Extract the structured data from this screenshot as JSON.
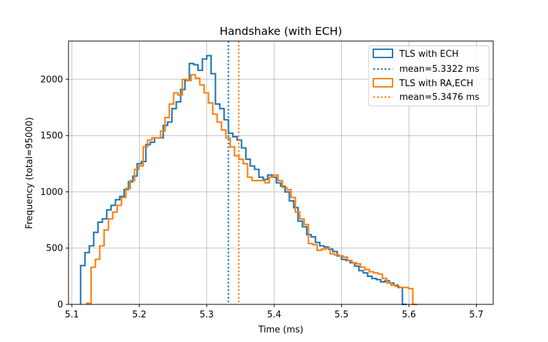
{
  "chart_data": {
    "type": "histogram",
    "title": "Handshake (with ECH)",
    "xlabel": "Time (ms)",
    "ylabel": "Frequency (total=95000)",
    "xlim": [
      5.095,
      5.725
    ],
    "ylim": [
      0,
      2340
    ],
    "xticks": [
      5.1,
      5.2,
      5.3,
      5.4,
      5.5,
      5.6,
      5.7
    ],
    "yticks": [
      0,
      500,
      1000,
      1500,
      2000
    ],
    "grid": true,
    "legend_position": "top-right",
    "series": [
      {
        "name": "TLS with ECH",
        "color": "#1f77b4",
        "bin_start": 5.113,
        "bin_width": 0.00645,
        "counts": [
          345,
          460,
          520,
          640,
          730,
          760,
          840,
          880,
          930,
          960,
          1020,
          1090,
          1140,
          1250,
          1270,
          1420,
          1440,
          1480,
          1480,
          1590,
          1620,
          1740,
          1800,
          1910,
          1990,
          2140,
          2130,
          2080,
          2180,
          2210,
          2050,
          1780,
          1740,
          1640,
          1520,
          1490,
          1460,
          1390,
          1290,
          1230,
          1200,
          1130,
          1110,
          1150,
          1130,
          1080,
          1050,
          1000,
          920,
          860,
          740,
          690,
          620,
          600,
          550,
          520,
          510,
          490,
          470,
          430,
          400,
          390,
          370,
          340,
          300,
          280,
          250,
          230,
          220,
          200,
          210,
          190,
          170,
          150,
          0
        ],
        "mean_label": "mean=5.3322 ms",
        "mean": 5.3322
      },
      {
        "name": "TLS with RA,ECH",
        "color": "#ff7f0e",
        "bin_start": 5.122,
        "bin_width": 0.00645,
        "counts": [
          10,
          330,
          400,
          520,
          660,
          760,
          820,
          880,
          950,
          1030,
          1100,
          1200,
          1230,
          1400,
          1460,
          1480,
          1480,
          1540,
          1660,
          1780,
          1880,
          1860,
          2000,
          1990,
          2040,
          2010,
          1950,
          1880,
          1790,
          1690,
          1620,
          1550,
          1480,
          1400,
          1320,
          1290,
          1250,
          1130,
          1100,
          1100,
          1100,
          1080,
          1130,
          1150,
          1100,
          1040,
          1020,
          950,
          820,
          760,
          710,
          540,
          530,
          480,
          490,
          500,
          450,
          440,
          430,
          420,
          390,
          370,
          360,
          330,
          310,
          290,
          280,
          270,
          230,
          190,
          170,
          160,
          150,
          150,
          140,
          0
        ],
        "mean_label": "mean=5.3476 ms",
        "mean": 5.3476
      }
    ]
  }
}
